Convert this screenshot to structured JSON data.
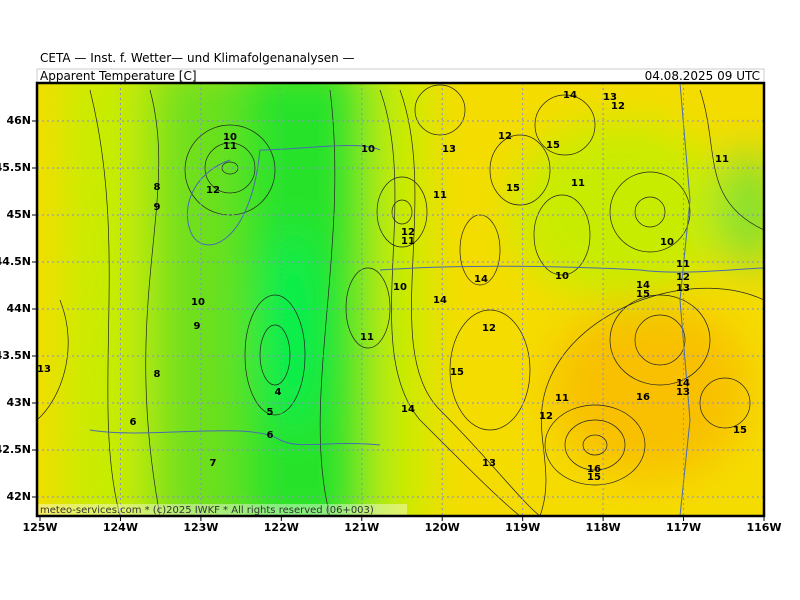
{
  "header": {
    "title": "CETA — Inst. f. Wetter— und Klimafolgenanalysen —",
    "subtitle": "Apparent Temperature [C]",
    "valid_time": "04.08.2025 09 UTC"
  },
  "map": {
    "lat_labels": [
      "46N",
      "45.5N",
      "45N",
      "44.5N",
      "44N",
      "43.5N",
      "43N",
      "42.5N",
      "42N"
    ],
    "lon_labels": [
      "125W",
      "124W",
      "123W",
      "122W",
      "121W",
      "120W",
      "119W",
      "118W",
      "117W",
      "116W"
    ],
    "contour_labels": [
      10,
      11,
      12,
      8,
      9,
      10,
      9,
      8,
      6,
      7,
      4,
      5,
      6,
      13,
      10,
      12,
      11,
      10,
      11,
      11,
      13,
      12,
      14,
      13,
      12,
      15,
      15,
      11,
      11,
      10,
      11,
      12,
      13,
      14,
      15,
      10,
      14,
      14,
      12,
      15,
      14,
      11,
      12,
      16,
      14,
      13,
      15,
      13,
      16,
      15
    ],
    "footer": "meteo-services.com * (c)2025 IWKF * All rights reserved (06+003)"
  }
}
